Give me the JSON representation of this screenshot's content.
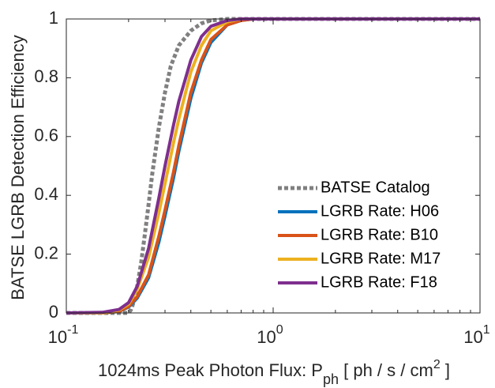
{
  "chart_data": {
    "type": "line",
    "title": "",
    "xlabel": {
      "main": "1024ms Peak Photon Flux: P",
      "subscript": "ph",
      "unit_pre": " [ ph / s / cm",
      "superscript": "2",
      "unit_post": " ]"
    },
    "ylabel": "BATSE LGRB Detection Efficiency",
    "x_scale": "log",
    "xlim": [
      0.1,
      10
    ],
    "ylim": [
      0,
      1
    ],
    "x_ticks": [
      {
        "base": "10",
        "exp": "-1",
        "value": 0.1
      },
      {
        "base": "10",
        "exp": "0",
        "value": 1
      },
      {
        "base": "10",
        "exp": "1",
        "value": 10
      }
    ],
    "y_ticks": [
      "0",
      "0.2",
      "0.4",
      "0.6",
      "0.8",
      "1"
    ],
    "y_tick_values": [
      0,
      0.2,
      0.4,
      0.6,
      0.8,
      1
    ],
    "grid": false,
    "legend_position": "lower-right",
    "series": [
      {
        "name": "BATSE Catalog",
        "color": "#808080",
        "dashed": true,
        "points": [
          [
            0.1,
            0
          ],
          [
            0.2,
            0
          ],
          [
            0.205,
            0.01
          ],
          [
            0.21,
            0.03
          ],
          [
            0.22,
            0.09
          ],
          [
            0.23,
            0.17
          ],
          [
            0.24,
            0.27
          ],
          [
            0.25,
            0.37
          ],
          [
            0.26,
            0.47
          ],
          [
            0.28,
            0.63
          ],
          [
            0.3,
            0.75
          ],
          [
            0.32,
            0.84
          ],
          [
            0.35,
            0.91
          ],
          [
            0.4,
            0.96
          ],
          [
            0.45,
            0.985
          ],
          [
            0.5,
            0.995
          ],
          [
            0.6,
            1
          ],
          [
            10,
            1
          ]
        ]
      },
      {
        "name": "LGRB Rate: H06",
        "color": "#0072BD",
        "dashed": false,
        "points": [
          [
            0.1,
            0
          ],
          [
            0.15,
            0
          ],
          [
            0.18,
            0.005
          ],
          [
            0.2,
            0.02
          ],
          [
            0.22,
            0.05
          ],
          [
            0.25,
            0.12
          ],
          [
            0.28,
            0.24
          ],
          [
            0.3,
            0.33
          ],
          [
            0.33,
            0.46
          ],
          [
            0.35,
            0.55
          ],
          [
            0.4,
            0.73
          ],
          [
            0.45,
            0.85
          ],
          [
            0.5,
            0.92
          ],
          [
            0.6,
            0.98
          ],
          [
            0.7,
            0.995
          ],
          [
            0.8,
            1
          ],
          [
            10,
            1
          ]
        ]
      },
      {
        "name": "LGRB Rate: B10",
        "color": "#D95319",
        "dashed": false,
        "points": [
          [
            0.1,
            0
          ],
          [
            0.15,
            0
          ],
          [
            0.18,
            0.005
          ],
          [
            0.2,
            0.022
          ],
          [
            0.22,
            0.055
          ],
          [
            0.25,
            0.13
          ],
          [
            0.28,
            0.26
          ],
          [
            0.3,
            0.35
          ],
          [
            0.33,
            0.48
          ],
          [
            0.35,
            0.57
          ],
          [
            0.4,
            0.75
          ],
          [
            0.45,
            0.86
          ],
          [
            0.5,
            0.93
          ],
          [
            0.6,
            0.98
          ],
          [
            0.7,
            0.995
          ],
          [
            0.8,
            1
          ],
          [
            10,
            1
          ]
        ]
      },
      {
        "name": "LGRB Rate: M17",
        "color": "#EDB120",
        "dashed": false,
        "points": [
          [
            0.1,
            0
          ],
          [
            0.15,
            0
          ],
          [
            0.18,
            0.01
          ],
          [
            0.2,
            0.03
          ],
          [
            0.22,
            0.08
          ],
          [
            0.25,
            0.19
          ],
          [
            0.28,
            0.34
          ],
          [
            0.3,
            0.44
          ],
          [
            0.33,
            0.58
          ],
          [
            0.35,
            0.66
          ],
          [
            0.4,
            0.82
          ],
          [
            0.45,
            0.91
          ],
          [
            0.5,
            0.96
          ],
          [
            0.6,
            0.99
          ],
          [
            0.7,
            1
          ],
          [
            10,
            1
          ]
        ]
      },
      {
        "name": "LGRB Rate: F18",
        "color": "#7E2F8E",
        "dashed": false,
        "points": [
          [
            0.1,
            0
          ],
          [
            0.15,
            0.002
          ],
          [
            0.18,
            0.012
          ],
          [
            0.2,
            0.035
          ],
          [
            0.22,
            0.09
          ],
          [
            0.25,
            0.22
          ],
          [
            0.28,
            0.39
          ],
          [
            0.3,
            0.5
          ],
          [
            0.33,
            0.64
          ],
          [
            0.35,
            0.72
          ],
          [
            0.4,
            0.86
          ],
          [
            0.45,
            0.94
          ],
          [
            0.5,
            0.975
          ],
          [
            0.6,
            0.995
          ],
          [
            0.7,
            1
          ],
          [
            10,
            1
          ]
        ]
      }
    ]
  }
}
